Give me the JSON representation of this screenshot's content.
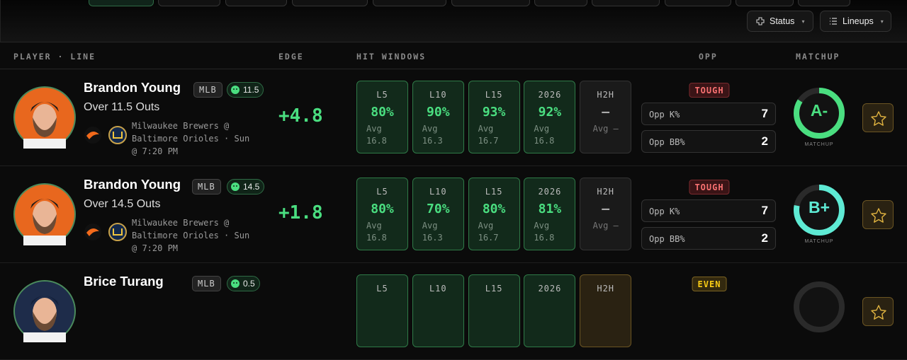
{
  "toolbar": {
    "buttons": [
      "Status",
      "Lineups"
    ]
  },
  "header": {
    "columns": [
      "PLAYER · LINE",
      "EDGE",
      "HIT WINDOWS",
      "OPP",
      "MATCHUP"
    ]
  },
  "rows": [
    {
      "name": "Brandon Young",
      "league": "MLB",
      "line": "11.5",
      "prop": "Over 11.5 Outs",
      "game": "Milwaukee Brewers @ Baltimore Orioles · Sun @ 7:20 PM",
      "edge": "+4.8",
      "windows": [
        {
          "label": "L5",
          "pct": "80%",
          "avg": [
            "Avg",
            "16.8"
          ]
        },
        {
          "label": "L10",
          "pct": "90%",
          "avg": [
            "Avg",
            "16.3"
          ]
        },
        {
          "label": "L15",
          "pct": "93%",
          "avg": [
            "Avg",
            "16.7"
          ]
        },
        {
          "label": "2026",
          "pct": "92%",
          "avg": [
            "Avg",
            "16.8"
          ]
        },
        {
          "label": "H2H",
          "pct": "—",
          "avg": [
            "Avg —"
          ]
        }
      ],
      "opp": {
        "tag": "TOUGH",
        "stats": [
          {
            "label": "Opp K%",
            "value": "7"
          },
          {
            "label": "Opp BB%",
            "value": "2"
          }
        ]
      },
      "grade": "A-",
      "grade_label": "MATCHUP"
    },
    {
      "name": "Brandon Young",
      "league": "MLB",
      "line": "14.5",
      "prop": "Over 14.5 Outs",
      "game": "Milwaukee Brewers @ Baltimore Orioles · Sun @ 7:20 PM",
      "edge": "+1.8",
      "windows": [
        {
          "label": "L5",
          "pct": "80%",
          "avg": [
            "Avg",
            "16.8"
          ]
        },
        {
          "label": "L10",
          "pct": "70%",
          "avg": [
            "Avg",
            "16.3"
          ]
        },
        {
          "label": "L15",
          "pct": "80%",
          "avg": [
            "Avg",
            "16.7"
          ]
        },
        {
          "label": "2026",
          "pct": "81%",
          "avg": [
            "Avg",
            "16.8"
          ]
        },
        {
          "label": "H2H",
          "pct": "—",
          "avg": [
            "Avg —"
          ]
        }
      ],
      "opp": {
        "tag": "TOUGH",
        "stats": [
          {
            "label": "Opp K%",
            "value": "7"
          },
          {
            "label": "Opp BB%",
            "value": "2"
          }
        ]
      },
      "grade": "B+",
      "grade_label": "MATCHUP"
    },
    {
      "name": "Brice Turang",
      "league": "MLB",
      "line": "0.5",
      "windows": [
        {
          "label": "L5"
        },
        {
          "label": "L10"
        },
        {
          "label": "L15"
        },
        {
          "label": "2026"
        },
        {
          "label": "H2H"
        }
      ],
      "opp": {
        "tag": "EVEN"
      }
    }
  ]
}
